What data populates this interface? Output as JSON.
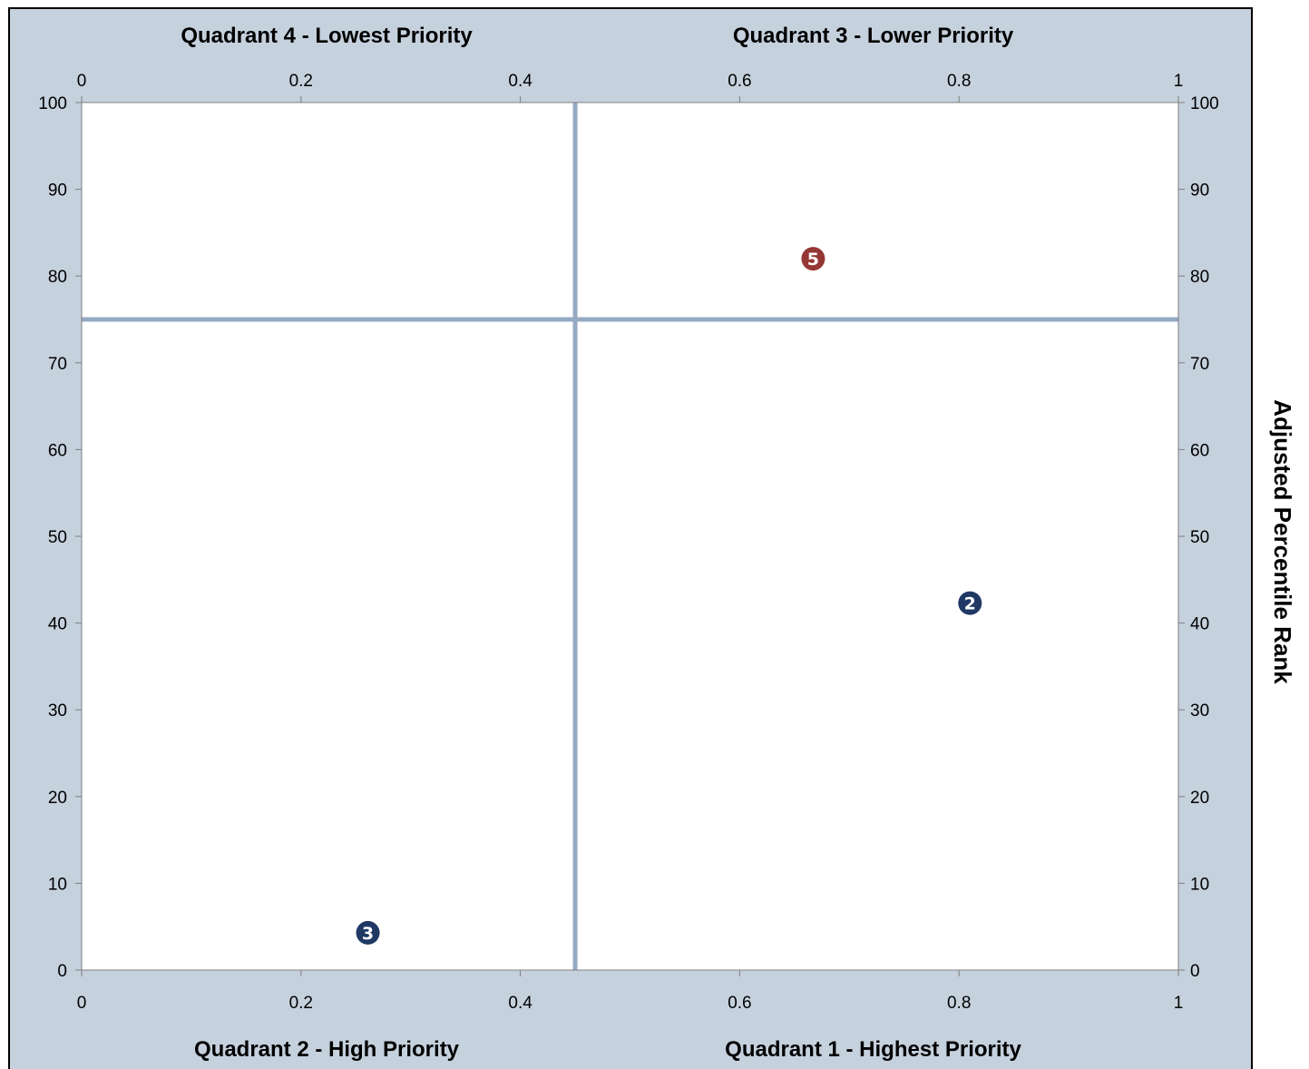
{
  "chart_data": {
    "type": "scatter",
    "quadrant_labels": {
      "top_left": "Quadrant 4 - Lowest Priority",
      "top_right": "Quadrant 3 - Lower Priority",
      "bottom_left": "Quadrant 2 - High Priority",
      "bottom_right": "Quadrant 1 - Highest Priority"
    },
    "y2label": "Adjusted Percentile Rank",
    "xlim": [
      0,
      1
    ],
    "ylim": [
      0,
      100
    ],
    "xticks": [
      "0",
      "0.2",
      "0.4",
      "0.6",
      "0.8",
      "1"
    ],
    "xtick_values": [
      0,
      0.2,
      0.4,
      0.6,
      0.8,
      1
    ],
    "yticks": [
      "0",
      "10",
      "20",
      "30",
      "40",
      "50",
      "60",
      "70",
      "80",
      "90",
      "100"
    ],
    "ytick_values": [
      0,
      10,
      20,
      30,
      40,
      50,
      60,
      70,
      80,
      90,
      100
    ],
    "divider": {
      "x": 0.45,
      "y": 75,
      "color": "#95a9c3"
    },
    "points": [
      {
        "label": "5",
        "x": 0.667,
        "y": 82,
        "color": "#953735"
      },
      {
        "label": "2",
        "x": 0.81,
        "y": 42.3,
        "color": "#1f3864"
      },
      {
        "label": "3",
        "x": 0.261,
        "y": 4.3,
        "color": "#1f3864"
      }
    ],
    "grid": false,
    "legend": "none"
  }
}
